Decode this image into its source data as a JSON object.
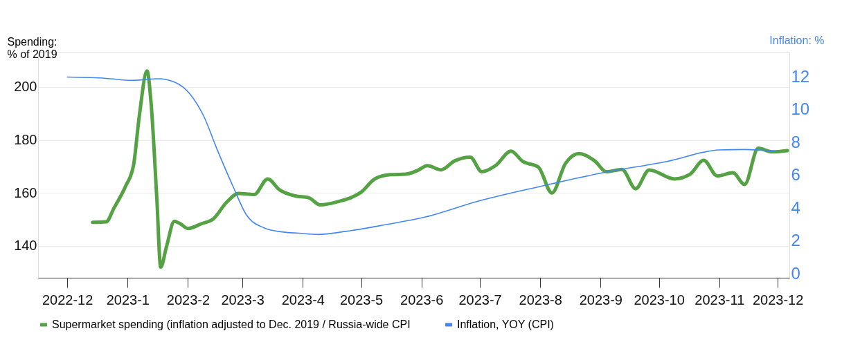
{
  "chart_data": {
    "type": "line",
    "ylabel": "Spending:\n% of 2019",
    "y2label": "Inflation: %",
    "xlim": [
      "2022-11-16",
      "2023-12-07"
    ],
    "xticks": [
      {
        "value": "2022-12",
        "label": "2022-12"
      },
      {
        "value": "2023-01",
        "label": "2023-1"
      },
      {
        "value": "2023-02",
        "label": "2023-2"
      },
      {
        "value": "2023-03",
        "label": "2023-3"
      },
      {
        "value": "2023-04",
        "label": "2023-4"
      },
      {
        "value": "2023-05",
        "label": "2023-5"
      },
      {
        "value": "2023-06",
        "label": "2023-6"
      },
      {
        "value": "2023-07",
        "label": "2023-7"
      },
      {
        "value": "2023-08",
        "label": "2023-8"
      },
      {
        "value": "2023-09",
        "label": "2023-9"
      },
      {
        "value": "2023-10",
        "label": "2023-10"
      },
      {
        "value": "2023-11",
        "label": "2023-11"
      },
      {
        "value": "2023-12",
        "label": "2023-12"
      }
    ],
    "ylim": [
      128,
      213
    ],
    "yticks": [
      140,
      160,
      180,
      200
    ],
    "y2lim": [
      -0.25,
      13.5
    ],
    "y2ticks": [
      0,
      2,
      4,
      6,
      8,
      10,
      12
    ],
    "grid": "y",
    "legend": "bottom",
    "marker": "none",
    "line_style": "solid",
    "series": [
      {
        "name": "Supermarket spending (inflation adjusted to Dec. 2019 / Russia-wide CPI",
        "color": "#55a244",
        "x": [
          "2022-12-14",
          "2022-12-21",
          "2022-12-25",
          "2022-12-31",
          "2023-01-04",
          "2023-01-07",
          "2023-01-11",
          "2023-01-13",
          "2023-01-16",
          "2023-01-18",
          "2023-01-21",
          "2023-01-25",
          "2023-01-28",
          "2023-02-01",
          "2023-02-08",
          "2023-02-14",
          "2023-02-21",
          "2023-02-27",
          "2023-03-07",
          "2023-03-14",
          "2023-03-20",
          "2023-03-28",
          "2023-04-04",
          "2023-04-10",
          "2023-04-20",
          "2023-04-25",
          "2023-05-01",
          "2023-05-08",
          "2023-05-16",
          "2023-05-24",
          "2023-05-30",
          "2023-06-04",
          "2023-06-11",
          "2023-06-18",
          "2023-06-26",
          "2023-07-02",
          "2023-07-09",
          "2023-07-17",
          "2023-07-23",
          "2023-07-31",
          "2023-08-07",
          "2023-08-14",
          "2023-08-21",
          "2023-08-29",
          "2023-09-04",
          "2023-09-12",
          "2023-09-19",
          "2023-09-26",
          "2023-10-09",
          "2023-10-17",
          "2023-10-24",
          "2023-10-31",
          "2023-11-08",
          "2023-11-14",
          "2023-11-21",
          "2023-11-28",
          "2023-12-06"
        ],
        "values": [
          148.9,
          149.1,
          154.3,
          162.6,
          170.3,
          189,
          206,
          194.4,
          158,
          132,
          139.8,
          149.3,
          148.4,
          146.6,
          148.4,
          150.2,
          156.6,
          159.8,
          159.4,
          165.3,
          161.2,
          158.9,
          158.2,
          155.5,
          156.9,
          158,
          160.3,
          165.3,
          166.9,
          167.1,
          168.5,
          170.3,
          168.7,
          172.1,
          173.5,
          168,
          170.3,
          175.8,
          171.9,
          169.8,
          160,
          171.2,
          174.9,
          172.1,
          168,
          168.9,
          161.6,
          168.7,
          165.3,
          167.1,
          172.3,
          166.4,
          167.6,
          163.2,
          176.9,
          175.5,
          176
        ]
      },
      {
        "name": "Inflation, YOY (CPI)",
        "color": "#4285f4",
        "axis": "y2",
        "x": [
          "2022-12-01",
          "2022-12-21",
          "2023-01-03",
          "2023-01-17",
          "2023-01-25",
          "2023-02-02",
          "2023-02-09",
          "2023-02-16",
          "2023-02-24",
          "2023-03-03",
          "2023-03-12",
          "2023-03-22",
          "2023-03-30",
          "2023-04-09",
          "2023-04-23",
          "2023-05-13",
          "2023-06-03",
          "2023-06-30",
          "2023-07-31",
          "2023-09-03",
          "2023-10-05",
          "2023-11-01",
          "2023-11-14",
          "2023-11-30"
        ],
        "values": [
          12.0,
          11.92,
          11.8,
          11.9,
          11.7,
          10.97,
          9.64,
          7.58,
          5.37,
          3.6,
          2.8,
          2.54,
          2.47,
          2.39,
          2.58,
          2.98,
          3.46,
          4.42,
          5.3,
          6.18,
          6.85,
          7.55,
          7.58,
          7.47
        ]
      }
    ]
  }
}
